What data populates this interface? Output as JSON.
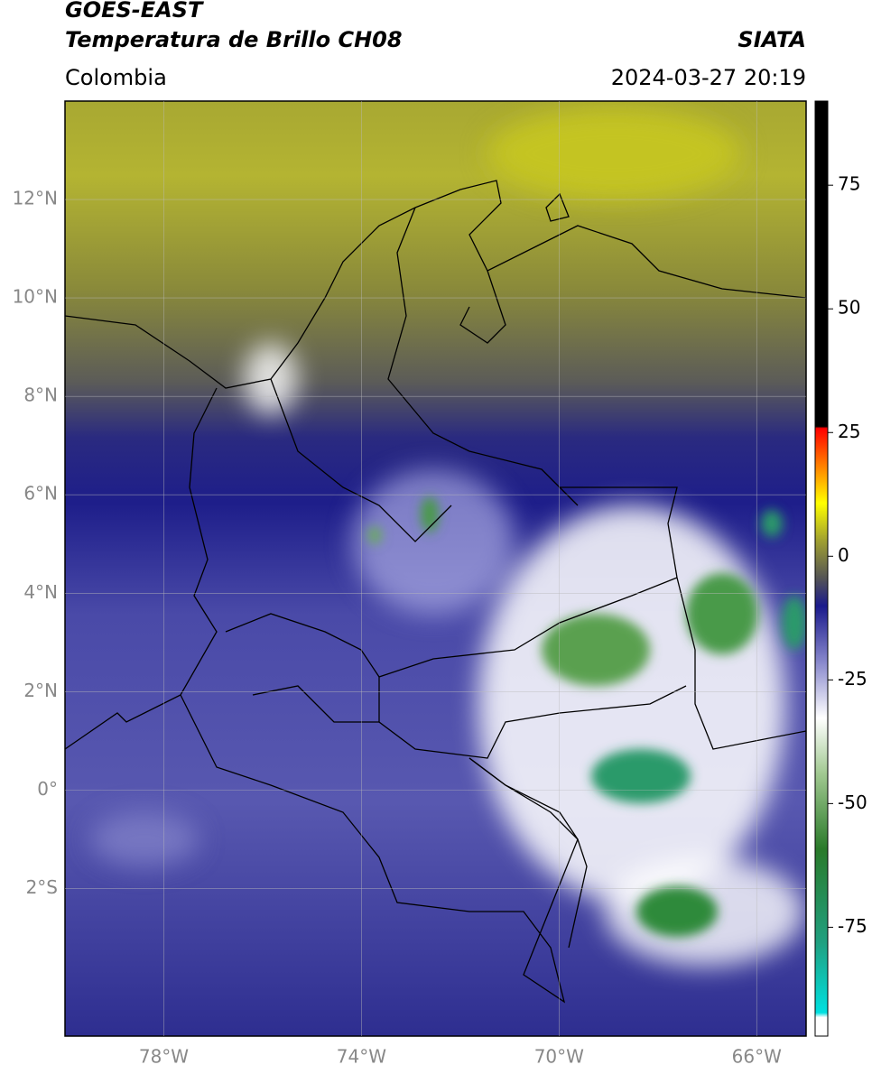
{
  "header": {
    "title": "GOES-EAST",
    "subtitle": "Temperatura de Brillo CH08",
    "source": "SIATA",
    "region": "Colombia",
    "timestamp": "2024-03-27 20:19"
  },
  "map": {
    "xlim": [
      -80,
      -65
    ],
    "ylim": [
      -5,
      14
    ],
    "yticks": [
      {
        "value": 12,
        "label": "12°N"
      },
      {
        "value": 10,
        "label": "10°N"
      },
      {
        "value": 8,
        "label": "8°N"
      },
      {
        "value": 6,
        "label": "6°N"
      },
      {
        "value": 4,
        "label": "4°N"
      },
      {
        "value": 2,
        "label": "2°N"
      },
      {
        "value": 0,
        "label": "0°"
      },
      {
        "value": -2,
        "label": "2°S"
      }
    ],
    "xticks": [
      {
        "value": -78,
        "label": "78°W"
      },
      {
        "value": -74,
        "label": "74°W"
      },
      {
        "value": -70,
        "label": "70°W"
      },
      {
        "value": -66,
        "label": "66°W"
      }
    ]
  },
  "colorbar": {
    "lim": [
      -97,
      92
    ],
    "ticks": [
      75,
      50,
      25,
      0,
      -25,
      -50,
      -75
    ]
  }
}
